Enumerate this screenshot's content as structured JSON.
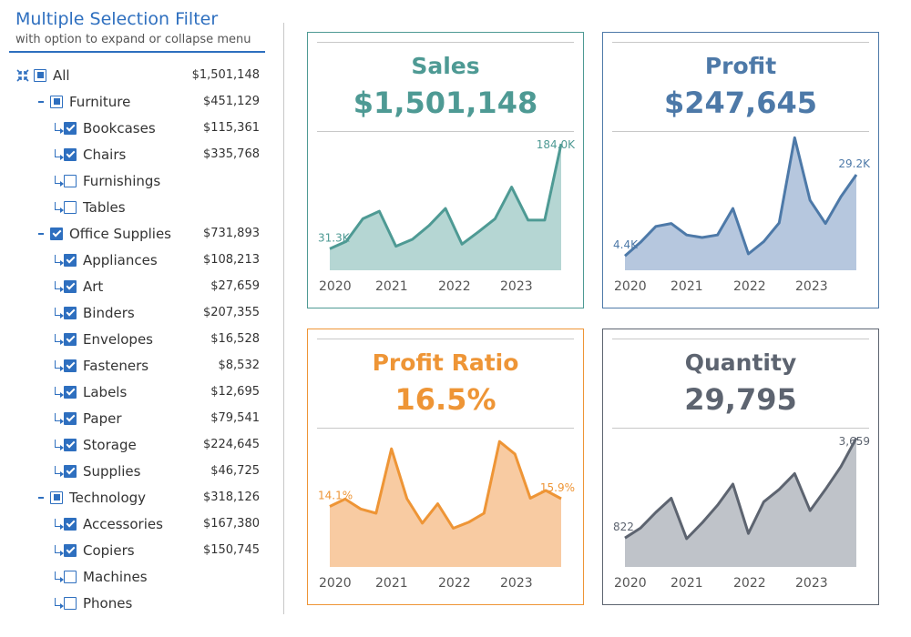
{
  "filter": {
    "title": "Multiple Selection Filter",
    "subtitle": "with option to expand or collapse menu",
    "items": [
      {
        "label": "All",
        "amount": "$1,501,148",
        "level": 0,
        "state": "partial",
        "icon": "expand-collapse-icon"
      },
      {
        "label": "Furniture",
        "amount": "$451,129",
        "level": 1,
        "state": "partial"
      },
      {
        "label": "Bookcases",
        "amount": "$115,361",
        "level": 2,
        "state": "checked"
      },
      {
        "label": "Chairs",
        "amount": "$335,768",
        "level": 2,
        "state": "checked"
      },
      {
        "label": "Furnishings",
        "amount": "",
        "level": 2,
        "state": "empty"
      },
      {
        "label": "Tables",
        "amount": "",
        "level": 2,
        "state": "empty"
      },
      {
        "label": "Office Supplies",
        "amount": "$731,893",
        "level": 1,
        "state": "checked"
      },
      {
        "label": "Appliances",
        "amount": "$108,213",
        "level": 2,
        "state": "checked"
      },
      {
        "label": "Art",
        "amount": "$27,659",
        "level": 2,
        "state": "checked"
      },
      {
        "label": "Binders",
        "amount": "$207,355",
        "level": 2,
        "state": "checked"
      },
      {
        "label": "Envelopes",
        "amount": "$16,528",
        "level": 2,
        "state": "checked"
      },
      {
        "label": "Fasteners",
        "amount": "$8,532",
        "level": 2,
        "state": "checked"
      },
      {
        "label": "Labels",
        "amount": "$12,695",
        "level": 2,
        "state": "checked"
      },
      {
        "label": "Paper",
        "amount": "$79,541",
        "level": 2,
        "state": "checked"
      },
      {
        "label": "Storage",
        "amount": "$224,645",
        "level": 2,
        "state": "checked"
      },
      {
        "label": "Supplies",
        "amount": "$46,725",
        "level": 2,
        "state": "checked"
      },
      {
        "label": "Technology",
        "amount": "$318,126",
        "level": 1,
        "state": "partial"
      },
      {
        "label": "Accessories",
        "amount": "$167,380",
        "level": 2,
        "state": "checked"
      },
      {
        "label": "Copiers",
        "amount": "$150,745",
        "level": 2,
        "state": "checked"
      },
      {
        "label": "Machines",
        "amount": "",
        "level": 2,
        "state": "empty"
      },
      {
        "label": "Phones",
        "amount": "",
        "level": 2,
        "state": "empty"
      }
    ]
  },
  "chart_data": [
    {
      "type": "area",
      "title": "Sales",
      "kpi": "$1,501,148",
      "color": "#4e9a94",
      "fill": "#b5d6d3",
      "x_labels": [
        "2020",
        "2021",
        "2022",
        "2023"
      ],
      "values": [
        31.3,
        42,
        75,
        86,
        35,
        45,
        65,
        90,
        38,
        56,
        75,
        121,
        73,
        73,
        184
      ],
      "ylim": [
        0,
        200
      ],
      "start_label": "31.3K",
      "end_label": "184.0K"
    },
    {
      "type": "area",
      "title": "Profit",
      "kpi": "$247,645",
      "color": "#4d79a8",
      "fill": "#b6c7de",
      "x_labels": [
        "2020",
        "2021",
        "2022",
        "2023"
      ],
      "values": [
        4.4,
        8.5,
        13.4,
        14.3,
        10.8,
        10,
        10.8,
        18.9,
        5,
        8.8,
        14.5,
        40.5,
        21.4,
        14.3,
        22.5,
        29.2
      ],
      "ylim": [
        0,
        42
      ],
      "start_label": "4.4K",
      "end_label": "29.2K"
    },
    {
      "type": "area",
      "title": "Profit Ratio",
      "kpi": "16.5%",
      "color": "#ee9536",
      "fill": "#f8cba2",
      "x_labels": [
        "2020",
        "2021",
        "2022",
        "2023"
      ],
      "values": [
        14.1,
        15.8,
        13.5,
        12.5,
        27.5,
        15.9,
        10.2,
        14.7,
        9,
        10.4,
        12.5,
        29.2,
        26.3,
        16,
        17.8,
        15.9
      ],
      "ylim": [
        0,
        32
      ],
      "start_label": "14.1%",
      "end_label": "15.9%"
    },
    {
      "type": "area",
      "title": "Quantity",
      "kpi": "29,795",
      "color": "#5d6470",
      "fill": "#bfc3c9",
      "x_labels": [
        "2020",
        "2021",
        "2022",
        "2023"
      ],
      "values": [
        822,
        1100,
        1550,
        1950,
        800,
        1250,
        1750,
        2350,
        950,
        1850,
        2200,
        2650,
        1600,
        2200,
        2850,
        3659
      ],
      "ylim": [
        0,
        3900
      ],
      "start_label": "822",
      "end_label": "3,659"
    }
  ]
}
